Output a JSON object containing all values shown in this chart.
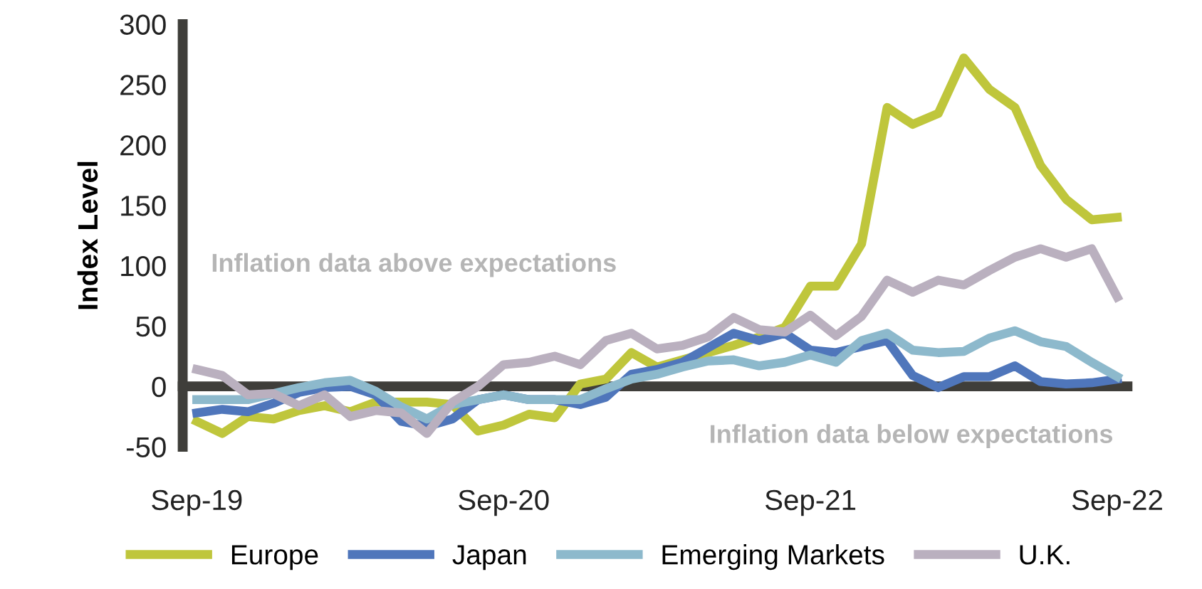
{
  "chart_data": {
    "type": "line",
    "ylabel": "Index Level",
    "categories": [
      "Sep-19",
      null,
      null,
      null,
      null,
      null,
      null,
      null,
      null,
      null,
      null,
      null,
      "Sep-20",
      null,
      null,
      null,
      null,
      null,
      null,
      null,
      null,
      null,
      null,
      null,
      "Sep-21",
      null,
      null,
      null,
      null,
      null,
      null,
      null,
      null,
      null,
      null,
      null,
      "Sep-22"
    ],
    "series": [
      {
        "name": "Europe",
        "color": "#bfc63c",
        "values": [
          -29,
          -39,
          -25,
          -27,
          -20,
          -16,
          -21,
          -13,
          -13,
          -13,
          -15,
          -37,
          -32,
          -23,
          -26,
          2,
          6,
          28,
          16,
          22,
          28,
          34,
          41,
          49,
          83,
          83,
          118,
          231,
          217,
          226,
          272,
          246,
          231,
          183,
          155,
          138,
          140
        ]
      },
      {
        "name": "Japan",
        "color": "#4f76bb",
        "values": [
          -22,
          -19,
          -21,
          -14,
          -5,
          -1,
          0,
          -7,
          -29,
          -33,
          -27,
          -11,
          -7,
          -11,
          -11,
          -15,
          -9,
          10,
          14,
          20,
          32,
          44,
          38,
          44,
          30,
          28,
          33,
          38,
          9,
          -1,
          8,
          8,
          17,
          4,
          2,
          3,
          6
        ]
      },
      {
        "name": "Emerging Markets",
        "color": "#8db9cc",
        "values": [
          -11,
          -11,
          -11,
          -6,
          -1,
          3,
          5,
          -4,
          -17,
          -27,
          -15,
          -11,
          -7,
          -11,
          -11,
          -11,
          -2,
          6,
          10,
          16,
          21,
          22,
          17,
          20,
          26,
          20,
          38,
          44,
          30,
          28,
          29,
          40,
          46,
          37,
          33,
          20,
          8
        ]
      },
      {
        "name": "U.K.",
        "color": "#bab0bf",
        "values": [
          14,
          9,
          -7,
          -6,
          -16,
          -7,
          -25,
          -20,
          -22,
          -39,
          -13,
          0,
          18,
          20,
          25,
          18,
          38,
          44,
          31,
          34,
          41,
          57,
          47,
          45,
          59,
          42,
          58,
          88,
          78,
          88,
          84,
          96,
          107,
          114,
          107,
          114,
          74
        ]
      }
    ],
    "ylim": [
      -50,
      300
    ],
    "yticks": [
      -50,
      0,
      50,
      100,
      150,
      200,
      250,
      300
    ],
    "annotations": [
      "Inflation data above expectations",
      "Inflation data below expectations"
    ],
    "legend": "bottom",
    "marker": "none",
    "line_style": "solid"
  }
}
